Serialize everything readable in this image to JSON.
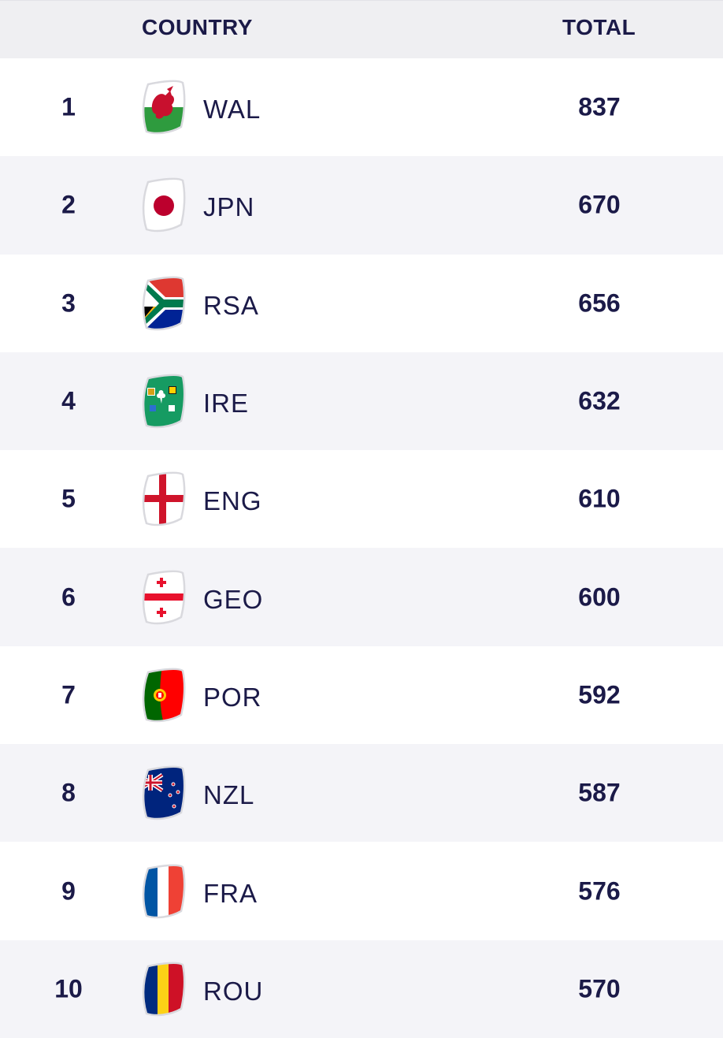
{
  "header": {
    "country": "COUNTRY",
    "total": "TOTAL"
  },
  "rows": [
    {
      "rank": "1",
      "code": "WAL",
      "total": "837",
      "flag": "wales-flag-icon"
    },
    {
      "rank": "2",
      "code": "JPN",
      "total": "670",
      "flag": "japan-flag-icon"
    },
    {
      "rank": "3",
      "code": "RSA",
      "total": "656",
      "flag": "south-africa-flag-icon"
    },
    {
      "rank": "4",
      "code": "IRE",
      "total": "632",
      "flag": "ireland-rugby-flag-icon"
    },
    {
      "rank": "5",
      "code": "ENG",
      "total": "610",
      "flag": "england-flag-icon"
    },
    {
      "rank": "6",
      "code": "GEO",
      "total": "600",
      "flag": "georgia-flag-icon"
    },
    {
      "rank": "7",
      "code": "POR",
      "total": "592",
      "flag": "portugal-flag-icon"
    },
    {
      "rank": "8",
      "code": "NZL",
      "total": "587",
      "flag": "new-zealand-flag-icon"
    },
    {
      "rank": "9",
      "code": "FRA",
      "total": "576",
      "flag": "france-flag-icon"
    },
    {
      "rank": "10",
      "code": "ROU",
      "total": "570",
      "flag": "romania-flag-icon"
    }
  ],
  "colors": {
    "text": "#1b1a48",
    "header_bg": "#efeff2",
    "alt_row_bg": "#f4f4f8"
  }
}
